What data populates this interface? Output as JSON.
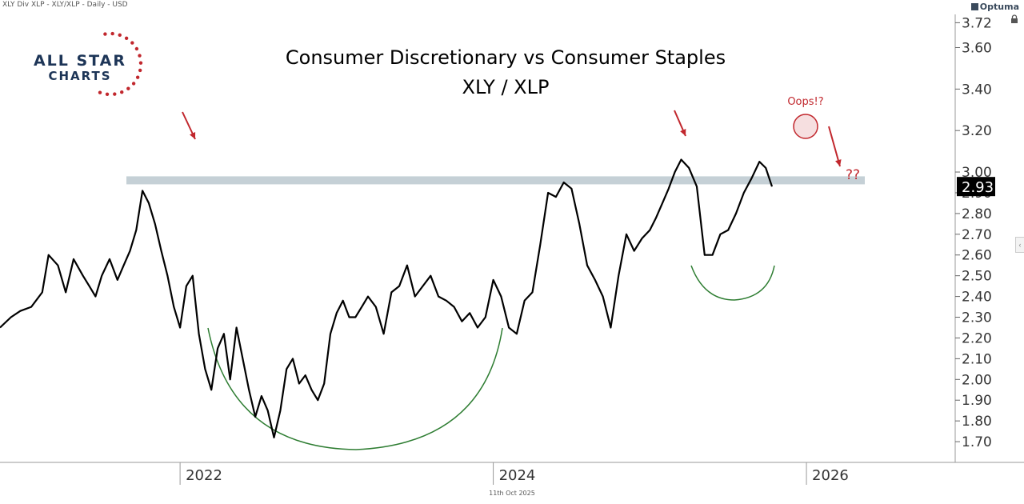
{
  "header": {
    "caption": "XLY Div XLP - XLY/XLP - Daily - USD",
    "vendor": "Optuma",
    "footer_date": "11th Oct 2025"
  },
  "logo": {
    "line1": "ALL STAR",
    "line2": "CHARTS",
    "colors": {
      "text": "#1d3557",
      "stars": "#c1272d"
    }
  },
  "icons": {
    "lock": "lock-icon",
    "collapse": "chevron-left-icon"
  },
  "chart_data": {
    "type": "line",
    "title": "Consumer Discretionary vs Consumer Staples",
    "subtitle": "XLY / XLP",
    "ylim": [
      1.6,
      3.76
    ],
    "xlim": [
      2020.85,
      2026.95
    ],
    "y_ticks": [
      3.72,
      3.6,
      3.4,
      3.2,
      3.0,
      2.9,
      2.8,
      2.7,
      2.6,
      2.5,
      2.4,
      2.3,
      2.2,
      2.1,
      2.0,
      1.9,
      1.8,
      1.7
    ],
    "y_tick_labels": [
      "3.72",
      "3.60",
      "3.40",
      "3.20",
      "3.00",
      "2.90",
      "2.80",
      "2.70",
      "2.60",
      "2.50",
      "2.40",
      "2.30",
      "2.20",
      "2.10",
      "2.00",
      "1.90",
      "1.80",
      "1.70"
    ],
    "x_ticks": [
      2022,
      2024,
      2026
    ],
    "x_tick_labels": [
      "2022",
      "2024",
      "2026"
    ],
    "last_value_label": "2.93",
    "grid": false,
    "colors": {
      "line": "#000000",
      "resistance": "#c5d0d6",
      "arrows": "#c1272d",
      "arcs": "#2e7d32",
      "label_bg": "#000000",
      "label_text": "#ffffff"
    },
    "series": [
      {
        "x": [
          2020.85,
          2020.92,
          2020.98,
          2021.05,
          2021.12,
          2021.16,
          2021.22,
          2021.27,
          2021.32,
          2021.38,
          2021.42,
          2021.46,
          2021.5,
          2021.55,
          2021.6,
          2021.64,
          2021.68,
          2021.72,
          2021.76,
          2021.8,
          2021.84,
          2021.88,
          2021.92,
          2021.96,
          2022.0,
          2022.04,
          2022.08,
          2022.12,
          2022.16,
          2022.2,
          2022.24,
          2022.28,
          2022.32,
          2022.36,
          2022.4,
          2022.44,
          2022.48,
          2022.52,
          2022.56,
          2022.6,
          2022.64,
          2022.68,
          2022.72,
          2022.76,
          2022.8,
          2022.84,
          2022.88,
          2022.92,
          2022.96,
          2023.0,
          2023.04,
          2023.08,
          2023.12,
          2023.16,
          2023.2,
          2023.25,
          2023.3,
          2023.35,
          2023.4,
          2023.45,
          2023.5,
          2023.55,
          2023.6,
          2023.65,
          2023.7,
          2023.75,
          2023.8,
          2023.85,
          2023.9,
          2023.95,
          2024.0,
          2024.05,
          2024.1,
          2024.15,
          2024.2,
          2024.25,
          2024.3,
          2024.35,
          2024.4,
          2024.45,
          2024.5,
          2024.55,
          2024.6,
          2024.65,
          2024.7,
          2024.75,
          2024.8,
          2024.85,
          2024.9,
          2024.95,
          2025.0,
          2025.04,
          2025.08,
          2025.12,
          2025.16,
          2025.2,
          2025.25,
          2025.3,
          2025.35,
          2025.4,
          2025.45,
          2025.5,
          2025.55,
          2025.6,
          2025.65,
          2025.7,
          2025.74,
          2025.78
        ],
        "values": [
          2.25,
          2.3,
          2.33,
          2.35,
          2.42,
          2.6,
          2.55,
          2.42,
          2.58,
          2.5,
          2.45,
          2.4,
          2.5,
          2.58,
          2.48,
          2.55,
          2.62,
          2.72,
          2.91,
          2.85,
          2.75,
          2.62,
          2.5,
          2.35,
          2.25,
          2.45,
          2.5,
          2.22,
          2.05,
          1.95,
          2.15,
          2.22,
          2.0,
          2.25,
          2.1,
          1.95,
          1.82,
          1.92,
          1.85,
          1.72,
          1.85,
          2.05,
          2.1,
          1.98,
          2.02,
          1.95,
          1.9,
          1.98,
          2.22,
          2.32,
          2.38,
          2.3,
          2.3,
          2.35,
          2.4,
          2.35,
          2.22,
          2.42,
          2.45,
          2.55,
          2.4,
          2.45,
          2.5,
          2.4,
          2.38,
          2.35,
          2.28,
          2.32,
          2.25,
          2.3,
          2.48,
          2.4,
          2.25,
          2.22,
          2.38,
          2.42,
          2.65,
          2.9,
          2.88,
          2.95,
          2.92,
          2.75,
          2.55,
          2.48,
          2.4,
          2.25,
          2.5,
          2.7,
          2.62,
          2.68,
          2.72,
          2.78,
          2.85,
          2.92,
          3.0,
          3.06,
          3.02,
          2.93,
          2.6,
          2.6,
          2.7,
          2.72,
          2.8,
          2.9,
          2.97,
          3.05,
          3.02,
          2.93
        ]
      }
    ],
    "annotations": [
      {
        "text": "Oops!?",
        "x": 2025.5,
        "y": 3.22
      },
      {
        "text": "??",
        "x": 2025.6,
        "y": 2.78
      }
    ],
    "resistance_level": 2.96
  }
}
